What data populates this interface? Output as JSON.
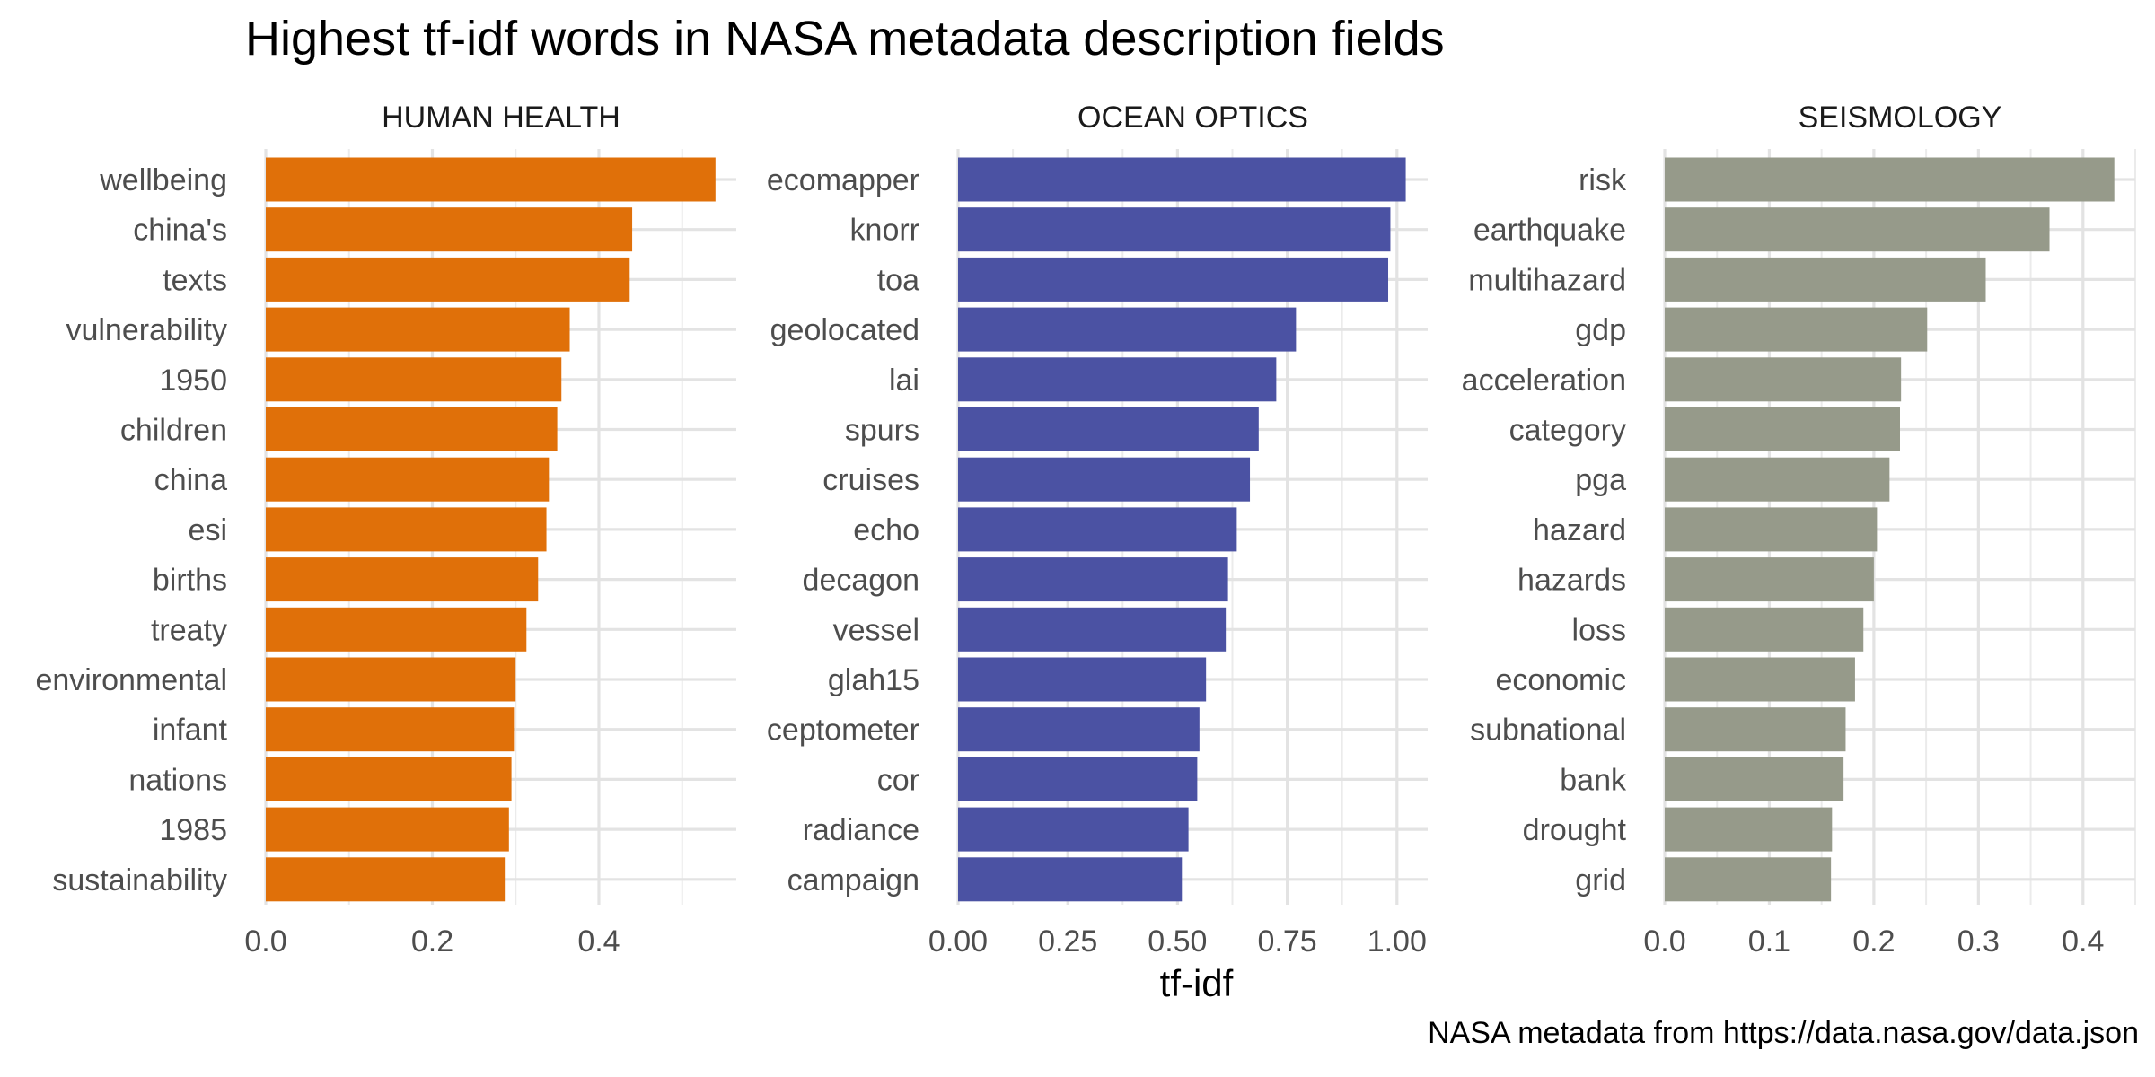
{
  "title": "Highest tf-idf words in NASA metadata description fields",
  "caption": "NASA metadata from https://data.nasa.gov/data.json",
  "chart_data": {
    "type": "bar",
    "orientation": "horizontal",
    "title": "Highest tf-idf words in NASA metadata description fields",
    "xlabel": "tf-idf",
    "ylabel": "",
    "caption": "NASA metadata from https://data.nasa.gov/data.json",
    "grid": true,
    "legend": "none",
    "facets": [
      {
        "name": "HUMAN HEALTH",
        "color": "#E07009",
        "xlim": [
          0,
          0.565
        ],
        "xticks": [
          0.0,
          0.2,
          0.4
        ],
        "xtick_labels": [
          "0.0",
          "0.2",
          "0.4"
        ],
        "categories": [
          "wellbeing",
          "china's",
          "texts",
          "vulnerability",
          "1950",
          "children",
          "china",
          "esi",
          "births",
          "treaty",
          "environmental",
          "infant",
          "nations",
          "1985",
          "sustainability"
        ],
        "values": [
          0.54,
          0.44,
          0.437,
          0.365,
          0.355,
          0.35,
          0.34,
          0.337,
          0.327,
          0.313,
          0.3,
          0.298,
          0.295,
          0.292,
          0.287
        ]
      },
      {
        "name": "OCEAN OPTICS",
        "color": "#4B52A3",
        "xlim": [
          0,
          1.07
        ],
        "xticks": [
          0.0,
          0.25,
          0.5,
          0.75,
          1.0
        ],
        "xtick_labels": [
          "0.00",
          "0.25",
          "0.50",
          "0.75",
          "1.00"
        ],
        "categories": [
          "ecomapper",
          "knorr",
          "toa",
          "geolocated",
          "lai",
          "spurs",
          "cruises",
          "echo",
          "decagon",
          "vessel",
          "glah15",
          "ceptometer",
          "cor",
          "radiance",
          "campaign"
        ],
        "values": [
          1.02,
          0.985,
          0.98,
          0.77,
          0.725,
          0.685,
          0.665,
          0.635,
          0.615,
          0.61,
          0.565,
          0.55,
          0.545,
          0.525,
          0.51
        ]
      },
      {
        "name": "SEISMOLOGY",
        "color": "#969A8A",
        "xlim": [
          0,
          0.45
        ],
        "xticks": [
          0.0,
          0.1,
          0.2,
          0.3,
          0.4
        ],
        "xtick_labels": [
          "0.0",
          "0.1",
          "0.2",
          "0.3",
          "0.4"
        ],
        "categories": [
          "risk",
          "earthquake",
          "multihazard",
          "gdp",
          "acceleration",
          "category",
          "pga",
          "hazard",
          "hazards",
          "loss",
          "economic",
          "subnational",
          "bank",
          "drought",
          "grid"
        ],
        "values": [
          0.43,
          0.368,
          0.307,
          0.251,
          0.226,
          0.225,
          0.215,
          0.203,
          0.2,
          0.19,
          0.182,
          0.173,
          0.171,
          0.16,
          0.159
        ]
      }
    ]
  }
}
